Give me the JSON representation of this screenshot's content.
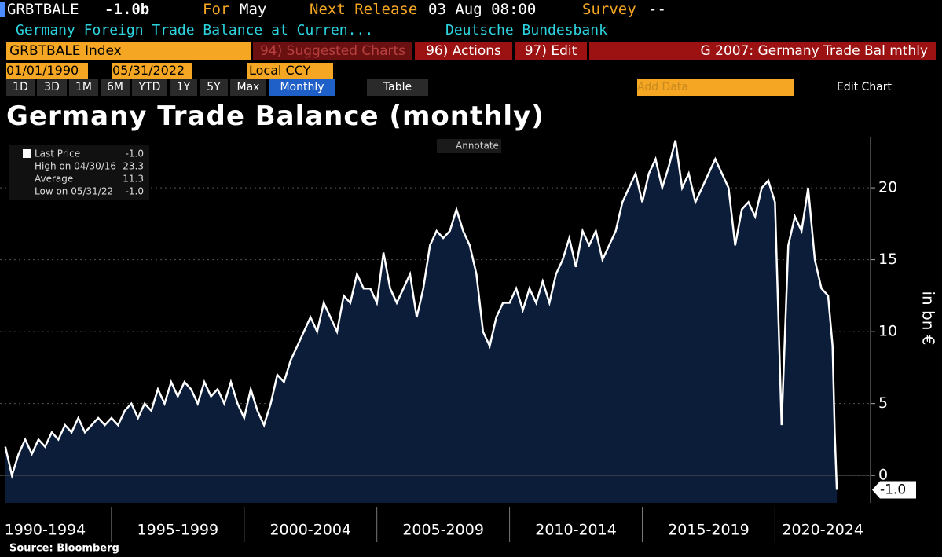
{
  "header": {
    "ticker": "GRBTBALE",
    "price": "-1.0b",
    "for_label": "For",
    "for_value": "May",
    "release_label": "Next Release",
    "release_value": "03 Aug 08:00",
    "survey_label": "Survey",
    "survey_value": "--",
    "description": "Germany Foreign Trade Balance at Curren...",
    "source": "Deutsche Bundesbank"
  },
  "toolbar": {
    "security": "GRBTBALE Index",
    "suggested": "94) Suggested Charts",
    "actions": "96) Actions",
    "edit": "97) Edit",
    "chart_name": "G 2007: Germany Trade Bal mthly"
  },
  "dates": {
    "start": "01/01/1990",
    "end": "05/31/2022",
    "currency": "Local CCY"
  },
  "buttons": {
    "periods": [
      "1D",
      "3D",
      "1M",
      "6M",
      "YTD",
      "1Y",
      "5Y",
      "Max"
    ],
    "frequency": "Monthly",
    "table": "Table",
    "add_data": "Add Data",
    "edit_chart": "Edit Chart",
    "annotate": "Annotate"
  },
  "chart_data": {
    "type": "area",
    "title": "Germany Trade Balance (monthly)",
    "y_label": "in bn €",
    "source": "Source: Bloomberg",
    "stats": [
      {
        "label": "Last Price",
        "value": "-1.0"
      },
      {
        "label": "High on 04/30/16",
        "value": "23.3"
      },
      {
        "label": "Average",
        "value": "11.3"
      },
      {
        "label": "Low on 05/31/22",
        "value": "-1.0"
      }
    ],
    "x": [
      1991,
      1991.25,
      1991.5,
      1991.75,
      1992,
      1992.25,
      1992.5,
      1992.75,
      1993,
      1993.25,
      1993.5,
      1993.75,
      1994,
      1994.25,
      1994.5,
      1994.75,
      1995,
      1995.25,
      1995.5,
      1995.75,
      1996,
      1996.25,
      1996.5,
      1996.75,
      1997,
      1997.25,
      1997.5,
      1997.75,
      1998,
      1998.25,
      1998.5,
      1998.75,
      1999,
      1999.25,
      1999.5,
      1999.75,
      2000,
      2000.25,
      2000.5,
      2000.75,
      2001,
      2001.25,
      2001.5,
      2001.75,
      2002,
      2002.25,
      2002.5,
      2002.75,
      2003,
      2003.25,
      2003.5,
      2003.75,
      2004,
      2004.25,
      2004.5,
      2004.75,
      2005,
      2005.25,
      2005.5,
      2005.75,
      2006,
      2006.25,
      2006.5,
      2006.75,
      2007,
      2007.25,
      2007.5,
      2007.75,
      2008,
      2008.25,
      2008.5,
      2008.75,
      2009,
      2009.25,
      2009.5,
      2009.75,
      2010,
      2010.25,
      2010.5,
      2010.75,
      2011,
      2011.25,
      2011.5,
      2011.75,
      2012,
      2012.25,
      2012.5,
      2012.75,
      2013,
      2013.25,
      2013.5,
      2013.75,
      2014,
      2014.25,
      2014.5,
      2014.75,
      2015,
      2015.25,
      2015.5,
      2015.75,
      2016,
      2016.25,
      2016.5,
      2016.75,
      2017,
      2017.25,
      2017.5,
      2017.75,
      2018,
      2018.25,
      2018.5,
      2018.75,
      2019,
      2019.25,
      2019.5,
      2019.75,
      2020,
      2020.25,
      2020.5,
      2020.75,
      2021,
      2021.25,
      2021.5,
      2021.75,
      2022,
      2022.17,
      2022.25,
      2022.33
    ],
    "series": [
      {
        "name": "GRBTBALE Index",
        "color": "#ffffff",
        "fill": "#0c1d3a",
        "values": [
          2,
          0,
          1.5,
          2.5,
          1.5,
          2.5,
          2,
          3,
          2.5,
          3.5,
          3,
          4,
          3,
          3.5,
          4,
          3.5,
          4,
          3.5,
          4.5,
          5,
          4,
          5,
          4.5,
          6,
          5,
          6.5,
          5.5,
          6.5,
          6,
          5,
          6.5,
          5.5,
          6,
          5,
          6.5,
          5,
          4,
          6,
          4.5,
          3.5,
          5,
          7,
          6.5,
          8,
          9,
          10,
          11,
          10,
          12,
          11,
          10,
          12.5,
          12,
          14,
          13,
          13,
          12,
          15.5,
          13,
          12,
          13,
          14,
          11,
          13,
          16,
          17,
          16.5,
          17,
          18.5,
          17,
          16,
          14,
          10,
          9,
          11,
          12,
          12,
          13,
          11.5,
          13,
          12,
          13.5,
          12,
          14,
          15,
          16.5,
          14.5,
          17,
          16,
          17,
          15,
          16,
          17,
          19,
          20,
          21,
          19,
          21,
          22,
          20,
          21.5,
          23.3,
          20,
          21,
          19,
          20,
          21,
          22,
          21,
          20,
          16,
          18.5,
          19,
          18,
          20,
          20.5,
          19,
          3.5,
          16,
          18,
          17,
          20,
          15,
          13,
          12.5,
          9,
          3,
          -1.0
        ]
      }
    ],
    "xlim": [
      1990,
      2023.6
    ],
    "ylim": [
      -1.9,
      23.5
    ],
    "yticks": [
      0,
      5,
      10,
      15,
      20
    ],
    "xticks": [
      1995,
      2000,
      2005,
      2010,
      2015,
      2020
    ],
    "period_labels": [
      "1990-1994",
      "1995-1999",
      "2000-2004",
      "2005-2009",
      "2010-2014",
      "2015-2019",
      "2020-2024"
    ],
    "grid": true
  }
}
